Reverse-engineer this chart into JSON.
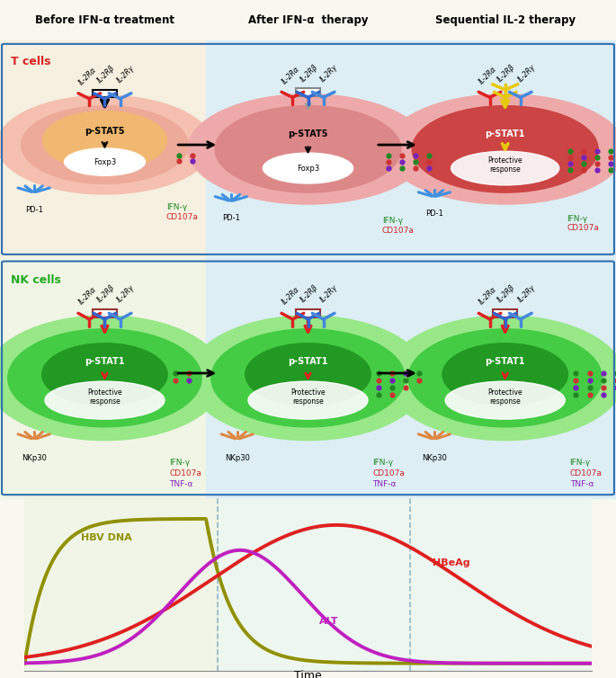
{
  "col_titles": [
    "Before IFN-α treatment",
    "After IFN-α  therapy",
    "Sequential IL-2 therapy"
  ],
  "section1_label": "T cells",
  "section2_label": "NK cells",
  "bg_warm": "#f5f0e0",
  "bg_cool": "#e0f0f5",
  "t_outer1": "#f5c0b0",
  "t_inner1": "#eca090",
  "t_core1": "#f0c080",
  "t_outer2": "#eeaaaa",
  "t_inner2": "#dd8080",
  "t_outer3": "#eeaaaa",
  "t_inner3": "#cc5555",
  "nk_outer": "#90e080",
  "nk_inner": "#40c040",
  "nk_core": "#208820",
  "dashed_line_color": "#90b8c8",
  "hbv_dna_color": "#909000",
  "hbeag_color": "#e02020",
  "alt_color": "#c020c0",
  "time_label": "Time",
  "curve_labels": [
    "HBV DNA",
    "HBeAg",
    "ALT"
  ],
  "bottom_bg": "#f0f8f0"
}
